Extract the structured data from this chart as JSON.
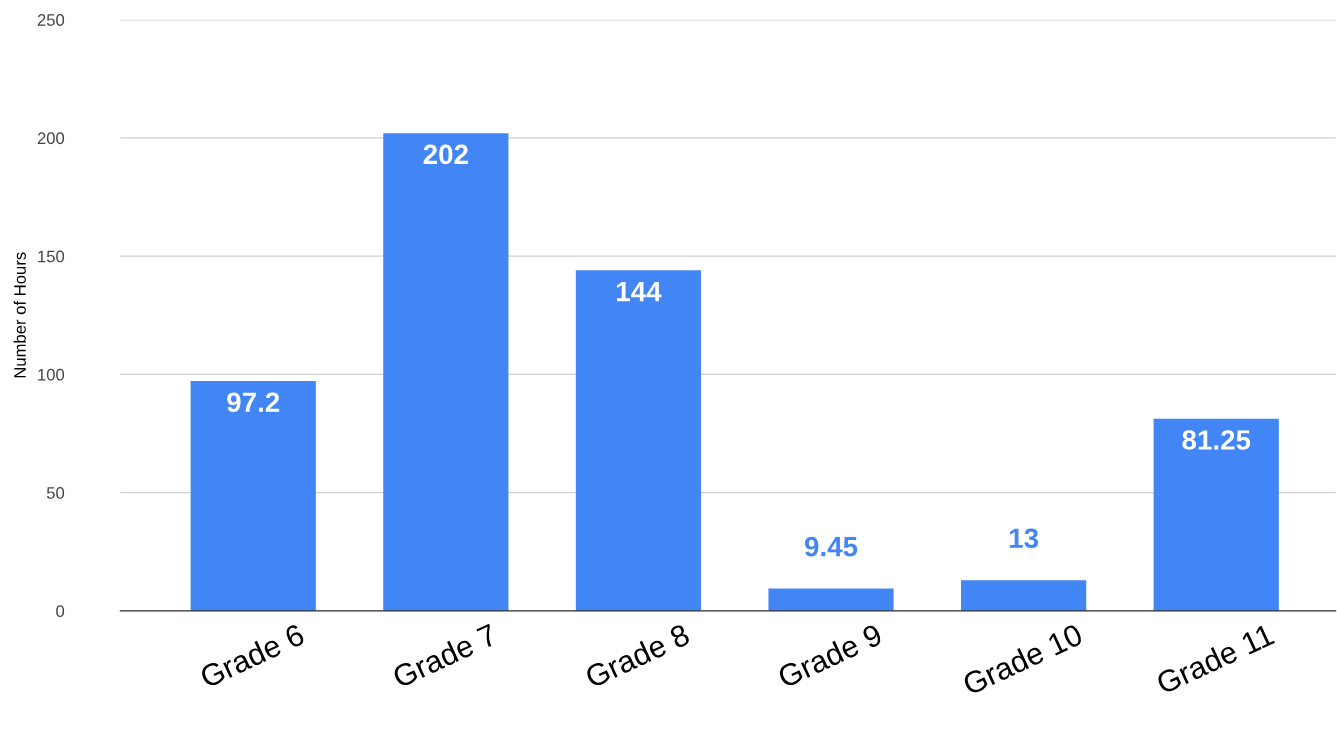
{
  "chart_data": {
    "type": "bar",
    "ylabel": "Number of Hours",
    "categories": [
      "Grade 6",
      "Grade 7",
      "Grade 8",
      "Grade 9",
      "Grade 10",
      "Grade 11"
    ],
    "values": [
      97.2,
      202,
      144,
      9.45,
      13,
      81.25
    ],
    "color": "#4285f4",
    "ylim": [
      0,
      250
    ],
    "yticks": [
      0,
      50,
      100,
      150,
      200,
      250
    ],
    "grid": "y",
    "data_labels": true
  }
}
